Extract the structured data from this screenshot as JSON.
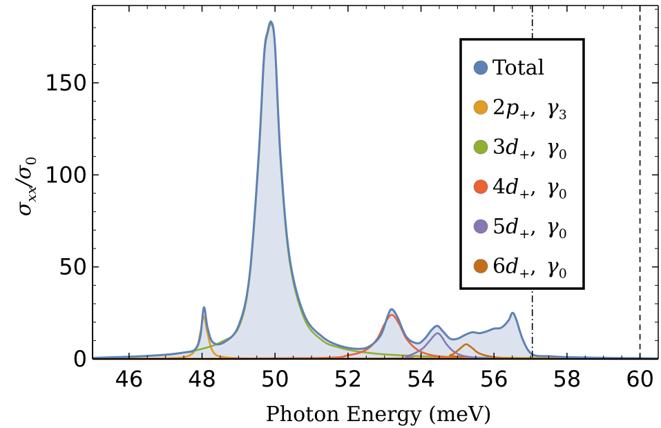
{
  "chart_data": {
    "type": "line",
    "title": "",
    "xlabel": "Photon Energy  (meV)",
    "ylabel": {
      "base": "σ",
      "sub1": "xx",
      "mid": "/σ",
      "sub2": "0"
    },
    "xlim": [
      45,
      60.5
    ],
    "ylim": [
      0,
      192
    ],
    "x_ticks": [
      46,
      48,
      50,
      52,
      54,
      56,
      58,
      60
    ],
    "y_ticks": [
      0,
      50,
      100,
      150
    ],
    "grid": false,
    "legend_position": "top-right",
    "vertical_lines": [
      {
        "x": 57.05,
        "style": "dash-dot"
      },
      {
        "x": 60.0,
        "style": "dashed"
      }
    ],
    "colors": {
      "total": "#5E81B5",
      "total_fill": "#DCE3EE",
      "p2": "#E19C24",
      "d3": "#8FB032",
      "d4": "#EB6235",
      "d5": "#8778B3",
      "d6": "#C56E1A"
    },
    "series": [
      {
        "name": "Total",
        "legend": {
          "main": "Total"
        },
        "color_key": "total",
        "x": [
          45,
          46,
          47,
          47.5,
          47.8,
          47.95,
          48.05,
          48.15,
          48.3,
          48.6,
          49,
          49.3,
          49.55,
          49.7,
          49.8,
          49.9,
          50,
          50.15,
          50.4,
          50.8,
          51.3,
          51.8,
          52.3,
          52.6,
          52.9,
          53.1,
          53.2,
          53.35,
          53.6,
          53.9,
          54.1,
          54.3,
          54.45,
          54.6,
          54.8,
          55,
          55.2,
          55.4,
          55.6,
          55.8,
          56,
          56.2,
          56.4,
          56.5,
          56.6,
          56.8,
          57.05,
          57.5,
          58,
          59,
          60,
          60.5
        ],
        "y": [
          0.6,
          1.2,
          2.3,
          3.5,
          5,
          12,
          28,
          17,
          9,
          9,
          18,
          45,
          110,
          165,
          178,
          183,
          170,
          110,
          55,
          24,
          12,
          7,
          5.5,
          7,
          13,
          24,
          27,
          23,
          12,
          8.5,
          11,
          16,
          18,
          15,
          11,
          11,
          13,
          14.5,
          14,
          15,
          16.5,
          17,
          21,
          25,
          22,
          10,
          2.5,
          1.5,
          1,
          0.6,
          0.4,
          0.3
        ]
      },
      {
        "name": "2p+, γ3",
        "legend": {
          "base": "2",
          "var": "p",
          "sup": "+",
          "gamma_sub": "3"
        },
        "color_key": "p2",
        "x": [
          45,
          47,
          47.6,
          47.85,
          47.95,
          48.05,
          48.15,
          48.3,
          48.6,
          49.5,
          51,
          53
        ],
        "y": [
          0.1,
          0.4,
          1.5,
          6,
          14,
          23,
          14,
          4,
          1,
          0.2,
          0.1,
          0
        ]
      },
      {
        "name": "3d+, γ0",
        "legend": {
          "base": "3",
          "var": "d",
          "sup": "+",
          "gamma_sub": "0"
        },
        "color_key": "d3",
        "x": [
          45,
          46,
          47,
          47.5,
          48,
          48.5,
          49,
          49.3,
          49.55,
          49.7,
          49.8,
          49.9,
          50,
          50.15,
          50.4,
          50.8,
          51.3,
          51.8,
          52.3,
          53,
          54,
          55,
          56,
          58,
          60.5
        ],
        "y": [
          0.6,
          1.1,
          2.3,
          3.5,
          5.5,
          9,
          17,
          44,
          108,
          163,
          177,
          182,
          169,
          108,
          53,
          22,
          10,
          6,
          4,
          2.5,
          1.5,
          1,
          0.7,
          0.4,
          0.2
        ]
      },
      {
        "name": "4d+, γ0",
        "legend": {
          "base": "4",
          "var": "d",
          "sup": "+",
          "gamma_sub": "0"
        },
        "color_key": "d4",
        "x": [
          45,
          51,
          52,
          52.5,
          52.8,
          53,
          53.2,
          53.4,
          53.6,
          53.9,
          54.3,
          54.8,
          55.5,
          57,
          60.5
        ],
        "y": [
          0,
          0.5,
          2,
          5,
          11,
          19,
          24,
          19,
          11,
          5,
          2,
          1,
          0.5,
          0.2,
          0
        ]
      },
      {
        "name": "5d+, γ0",
        "legend": {
          "base": "5",
          "var": "d",
          "sup": "+",
          "gamma_sub": "0"
        },
        "color_key": "d5",
        "x": [
          45,
          53,
          53.6,
          54,
          54.2,
          54.35,
          54.45,
          54.55,
          54.7,
          54.9,
          55.2,
          55.8,
          57,
          60.5
        ],
        "y": [
          0,
          0.3,
          1.5,
          5,
          9,
          12.5,
          14,
          12.5,
          8,
          4,
          1.5,
          0.5,
          0.1,
          0
        ]
      },
      {
        "name": "6d+, γ0",
        "legend": {
          "base": "6",
          "var": "d",
          "sup": "+",
          "gamma_sub": "0"
        },
        "color_key": "d6",
        "x": [
          45,
          54.3,
          54.8,
          55,
          55.15,
          55.25,
          55.4,
          55.6,
          56,
          56.6,
          58,
          60.5
        ],
        "y": [
          0,
          0.3,
          2,
          4.5,
          7,
          8,
          6,
          3,
          1,
          0.3,
          0.1,
          0
        ]
      }
    ]
  }
}
